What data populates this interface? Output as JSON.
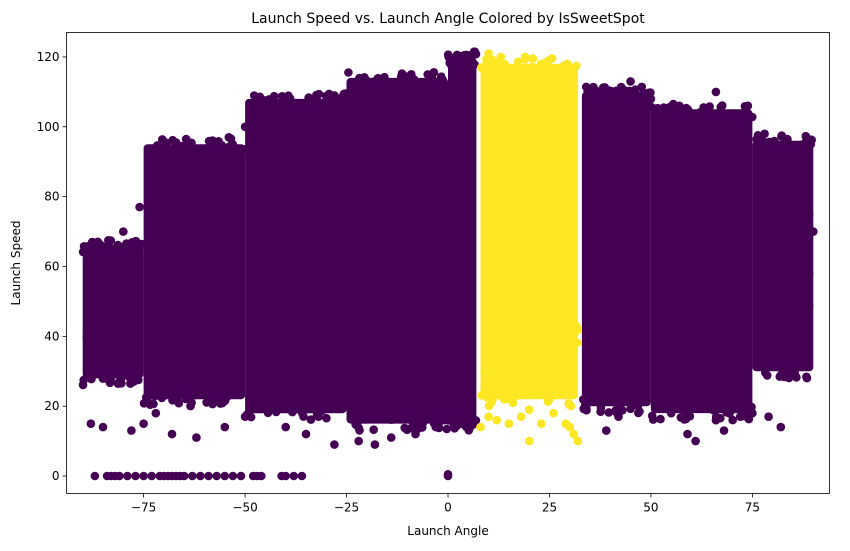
{
  "chart_data": {
    "type": "scatter",
    "title": "Launch Speed vs. Launch Angle Colored by IsSweetSpot",
    "xlabel": "Launch Angle",
    "ylabel": "Launch Speed",
    "xlim": [
      -94,
      94
    ],
    "ylim": [
      -5,
      127
    ],
    "x_ticks": [
      -75,
      -50,
      -25,
      0,
      25,
      50,
      75
    ],
    "y_ticks": [
      0,
      20,
      40,
      60,
      80,
      100,
      120
    ],
    "x_tick_labels": [
      "−75",
      "−50",
      "−25",
      "0",
      "25",
      "50",
      "75"
    ],
    "y_tick_labels": [
      "0",
      "20",
      "40",
      "60",
      "80",
      "100",
      "120"
    ],
    "grid": false,
    "legend": "none",
    "colors": {
      "not_sweet_spot": "#440154",
      "sweet_spot": "#fde725"
    },
    "series": [
      {
        "key": "not_sweet_spot",
        "color": "#440154",
        "regions": [
          {
            "x": [
              -90,
              -75
            ],
            "y": [
              28,
              66
            ]
          },
          {
            "x": [
              -75,
              -50
            ],
            "y": [
              22,
              95
            ]
          },
          {
            "x": [
              -50,
              -25
            ],
            "y": [
              18,
              108
            ]
          },
          {
            "x": [
              -25,
              0
            ],
            "y": [
              15,
              114
            ]
          },
          {
            "x": [
              0,
              7
            ],
            "y": [
              15,
              120
            ]
          },
          {
            "x": [
              33,
              50
            ],
            "y": [
              20,
              110
            ]
          },
          {
            "x": [
              50,
              75
            ],
            "y": [
              18,
              105
            ]
          },
          {
            "x": [
              75,
              90
            ],
            "y": [
              30,
              96
            ]
          }
        ],
        "points": [
          [
            -88,
            15
          ],
          [
            -85,
            14
          ],
          [
            -81,
            27
          ],
          [
            -78,
            13
          ],
          [
            -75,
            15
          ],
          [
            -72,
            18
          ],
          [
            -68,
            12
          ],
          [
            -62,
            11
          ],
          [
            -55,
            14
          ],
          [
            -50,
            17
          ],
          [
            -45,
            20
          ],
          [
            -40,
            14
          ],
          [
            -35,
            12
          ],
          [
            -28,
            9
          ],
          [
            -22,
            10
          ],
          [
            -18,
            9
          ],
          [
            -14,
            11
          ],
          [
            -8,
            12
          ],
          [
            -3,
            14
          ],
          [
            -1,
            16
          ],
          [
            3,
            15
          ],
          [
            6,
            15
          ],
          [
            39,
            13
          ],
          [
            42,
            17
          ],
          [
            55,
            18
          ],
          [
            59,
            12
          ],
          [
            61,
            10
          ],
          [
            66,
            16
          ],
          [
            67,
            20
          ],
          [
            68,
            13
          ],
          [
            72,
            17
          ],
          [
            75,
            18
          ],
          [
            79,
            17
          ],
          [
            82,
            14
          ],
          [
            88,
            36
          ],
          [
            89,
            49
          ],
          [
            -89,
            40
          ],
          [
            -88,
            57
          ],
          [
            -87,
            60
          ],
          [
            -86,
            45
          ],
          [
            -84,
            64
          ],
          [
            -80,
            70
          ],
          [
            -76,
            77
          ],
          [
            -70,
            82
          ],
          [
            -66,
            87
          ],
          [
            -62,
            91
          ],
          [
            -58,
            94
          ],
          [
            -54,
            97
          ],
          [
            -50,
            100
          ],
          [
            -46,
            103
          ],
          [
            -42,
            106
          ],
          [
            -35,
            107
          ],
          [
            -28,
            109
          ],
          [
            -20,
            111
          ],
          [
            -12,
            113
          ],
          [
            -5,
            115
          ],
          [
            1,
            117
          ],
          [
            4,
            118
          ],
          [
            45,
            113
          ],
          [
            50,
            108
          ],
          [
            57,
            106
          ],
          [
            62,
            104
          ],
          [
            66,
            110
          ],
          [
            70,
            102
          ],
          [
            73,
            100
          ],
          [
            78,
            98
          ],
          [
            83,
            95
          ],
          [
            86,
            90
          ],
          [
            89,
            75
          ],
          [
            90,
            70
          ],
          [
            88,
            62
          ],
          [
            89,
            58
          ],
          [
            -84,
            0
          ],
          [
            -83,
            0
          ],
          [
            -82,
            0
          ],
          [
            -81,
            0
          ],
          [
            -79,
            0
          ],
          [
            -77,
            0
          ],
          [
            -75,
            0
          ],
          [
            -73,
            0
          ],
          [
            -71,
            0
          ],
          [
            -70,
            0
          ],
          [
            -69,
            0
          ],
          [
            -68,
            0
          ],
          [
            -67,
            0
          ],
          [
            -66,
            0
          ],
          [
            -65,
            0
          ],
          [
            -63,
            0
          ],
          [
            -61,
            0
          ],
          [
            -59,
            0
          ],
          [
            -57,
            0
          ],
          [
            -55,
            0
          ],
          [
            -53,
            0
          ],
          [
            -51,
            0
          ],
          [
            -48,
            0
          ],
          [
            -47,
            0
          ],
          [
            -46,
            0
          ],
          [
            -41,
            0
          ],
          [
            -40,
            0
          ],
          [
            -38,
            0
          ],
          [
            -36,
            0
          ],
          [
            -87,
            0
          ],
          [
            0,
            0
          ],
          [
            0,
            0.5
          ]
        ]
      },
      {
        "key": "sweet_spot",
        "color": "#fde725",
        "regions": [
          {
            "x": [
              8,
              32
            ],
            "y": [
              40,
              118
            ]
          },
          {
            "x": [
              8,
              32
            ],
            "y": [
              22,
              42
            ]
          }
        ],
        "points": [
          [
            10,
            121
          ],
          [
            13,
            120
          ],
          [
            19,
            120
          ],
          [
            23,
            118
          ],
          [
            8,
            14
          ],
          [
            10,
            17
          ],
          [
            12,
            16
          ],
          [
            15,
            15
          ],
          [
            18,
            17
          ],
          [
            20,
            10
          ],
          [
            23,
            15
          ],
          [
            26,
            18
          ],
          [
            29,
            15
          ],
          [
            30,
            14
          ],
          [
            31,
            12
          ],
          [
            32,
            10
          ],
          [
            20,
            19
          ],
          [
            25,
            22
          ],
          [
            9,
            30
          ],
          [
            31,
            28
          ],
          [
            28,
            26
          ],
          [
            14,
            25
          ],
          [
            16,
            21
          ],
          [
            22,
            24
          ]
        ]
      }
    ]
  }
}
